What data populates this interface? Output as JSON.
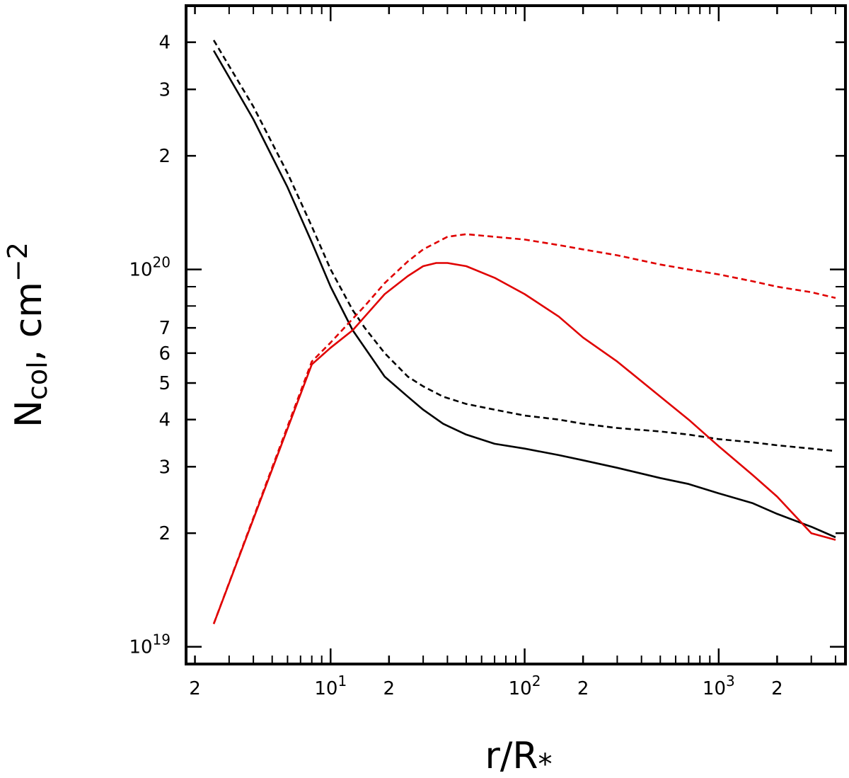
{
  "chart_data": {
    "type": "line",
    "x_scale": "log",
    "y_scale": "log",
    "xlim": [
      1.8,
      4500
    ],
    "ylim": [
      9e+18,
      5e+20
    ],
    "xlabel": "r/R*",
    "ylabel": "Ncol, cm−2",
    "xlabel_parts": {
      "base": "r/R",
      "sub": "*"
    },
    "ylabel_parts": {
      "base": "N",
      "sub": "col",
      "mid": ", cm",
      "sup": "−2"
    },
    "x_ticks": [
      {
        "value": 2,
        "mantissa": "2",
        "exp": ""
      },
      {
        "value": 10,
        "mantissa": "10",
        "exp": "1"
      },
      {
        "value": 20,
        "mantissa": "2",
        "exp": ""
      },
      {
        "value": 100,
        "mantissa": "10",
        "exp": "2"
      },
      {
        "value": 200,
        "mantissa": "2",
        "exp": ""
      },
      {
        "value": 1000,
        "mantissa": "10",
        "exp": "3"
      },
      {
        "value": 2000,
        "mantissa": "2",
        "exp": ""
      }
    ],
    "y_ticks": [
      {
        "value": 1e+19,
        "mantissa": "10",
        "exp": "19"
      },
      {
        "value": 2e+19,
        "mantissa": "2",
        "exp": ""
      },
      {
        "value": 3e+19,
        "mantissa": "3",
        "exp": ""
      },
      {
        "value": 4e+19,
        "mantissa": "4",
        "exp": ""
      },
      {
        "value": 5e+19,
        "mantissa": "5",
        "exp": ""
      },
      {
        "value": 6e+19,
        "mantissa": "6",
        "exp": ""
      },
      {
        "value": 7e+19,
        "mantissa": "7",
        "exp": ""
      },
      {
        "value": 1e+20,
        "mantissa": "10",
        "exp": "20"
      },
      {
        "value": 2e+20,
        "mantissa": "2",
        "exp": ""
      },
      {
        "value": 3e+20,
        "mantissa": "3",
        "exp": ""
      },
      {
        "value": 4e+20,
        "mantissa": "4",
        "exp": ""
      }
    ],
    "series": [
      {
        "name": "black-solid",
        "color": "#000000",
        "dash": "solid",
        "x": [
          2.5,
          4,
          6,
          8,
          10,
          13,
          15,
          19,
          25,
          30,
          38,
          50,
          70,
          100,
          150,
          200,
          300,
          500,
          700,
          1000,
          1500,
          2000,
          3000,
          4000
        ],
        "y": [
          3.8e+20,
          2.5e+20,
          1.65e+20,
          1.18e+20,
          9e+19,
          6.9e+19,
          6.2e+19,
          5.2e+19,
          4.6e+19,
          4.25e+19,
          3.9e+19,
          3.65e+19,
          3.45e+19,
          3.35e+19,
          3.22e+19,
          3.12e+19,
          2.98e+19,
          2.8e+19,
          2.7e+19,
          2.55e+19,
          2.4e+19,
          2.25e+19,
          2.08e+19,
          1.95e+19
        ]
      },
      {
        "name": "black-dashed",
        "color": "#000000",
        "dash": "dashed",
        "x": [
          2.5,
          4,
          6,
          8,
          10,
          13,
          15,
          19,
          25,
          30,
          38,
          50,
          70,
          100,
          150,
          200,
          300,
          500,
          700,
          1000,
          1500,
          2000,
          3000,
          4000
        ],
        "y": [
          4.05e+20,
          2.7e+20,
          1.8e+20,
          1.3e+20,
          1e+20,
          7.8e+19,
          7e+19,
          6e+19,
          5.2e+19,
          4.9e+19,
          4.6e+19,
          4.4e+19,
          4.25e+19,
          4.1e+19,
          4e+19,
          3.9e+19,
          3.8e+19,
          3.72e+19,
          3.65e+19,
          3.55e+19,
          3.48e+19,
          3.42e+19,
          3.35e+19,
          3.3e+19
        ]
      },
      {
        "name": "red-solid",
        "color": "#e00000",
        "dash": "solid",
        "x": [
          2.5,
          8,
          10,
          13,
          15,
          19,
          25,
          30,
          35,
          40,
          50,
          70,
          100,
          150,
          200,
          300,
          500,
          700,
          1000,
          1500,
          2000,
          3000,
          4000
        ],
        "y": [
          1.15e+19,
          5.6e+19,
          6.2e+19,
          6.9e+19,
          7.5e+19,
          8.6e+19,
          9.6e+19,
          1.02e+20,
          1.04e+20,
          1.04e+20,
          1.02e+20,
          9.5e+19,
          8.6e+19,
          7.5e+19,
          6.6e+19,
          5.7e+19,
          4.6e+19,
          4e+19,
          3.4e+19,
          2.85e+19,
          2.5e+19,
          2e+19,
          1.92e+19
        ]
      },
      {
        "name": "red-dashed",
        "color": "#e00000",
        "dash": "dashed",
        "x": [
          2.5,
          8,
          10,
          13,
          15,
          19,
          25,
          30,
          40,
          50,
          70,
          100,
          150,
          200,
          300,
          500,
          700,
          1000,
          1500,
          2000,
          3000,
          4000
        ],
        "y": [
          1.15e+19,
          5.7e+19,
          6.4e+19,
          7.4e+19,
          8e+19,
          9.2e+19,
          1.05e+20,
          1.13e+20,
          1.22e+20,
          1.24e+20,
          1.22e+20,
          1.2e+20,
          1.16e+20,
          1.13e+20,
          1.09e+20,
          1.03e+20,
          1e+20,
          9.7e+19,
          9.3e+19,
          9e+19,
          8.7e+19,
          8.4e+19
        ]
      }
    ]
  }
}
